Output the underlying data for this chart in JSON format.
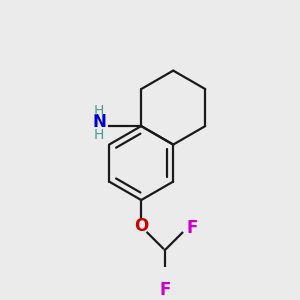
{
  "bg_color": "#ebebeb",
  "bond_color": "#1a1a1a",
  "N_color": "#0000cc",
  "O_color": "#cc0000",
  "F_color": "#cc00cc",
  "H_color": "#4a9a9a",
  "line_width": 1.6,
  "figsize": [
    3.0,
    3.0
  ],
  "dpi": 100,
  "xlim": [
    -1.2,
    1.4
  ],
  "ylim": [
    -1.6,
    1.4
  ]
}
